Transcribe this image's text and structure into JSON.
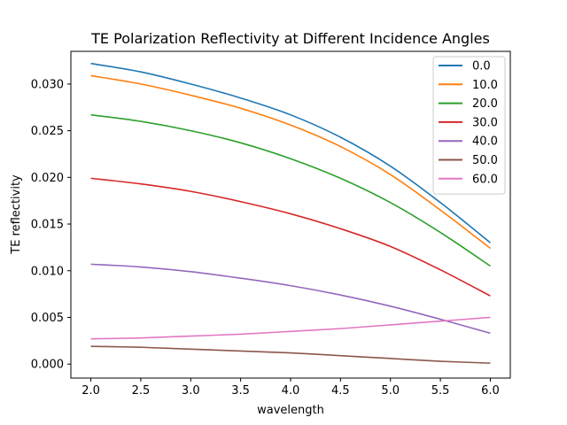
{
  "chart_data": {
    "type": "line",
    "title": "TE Polarization Reflectivity at Different Incidence Angles",
    "xlabel": "wavelength",
    "ylabel": "TE reflectivity",
    "xlim": [
      1.8,
      6.2
    ],
    "ylim": [
      -0.0015,
      0.0335
    ],
    "xticks": [
      "2.0",
      "2.5",
      "3.0",
      "3.5",
      "4.0",
      "4.5",
      "5.0",
      "5.5",
      "6.0"
    ],
    "yticks": [
      "0.000",
      "0.005",
      "0.010",
      "0.015",
      "0.020",
      "0.025",
      "0.030"
    ],
    "legend_position": "top-right",
    "grid": false,
    "x": [
      2.0,
      2.5,
      3.0,
      3.5,
      4.0,
      4.5,
      5.0,
      5.5,
      6.0
    ],
    "series": [
      {
        "name": "0.0",
        "color": "#1f77b4",
        "values": [
          0.0322,
          0.0313,
          0.03,
          0.0285,
          0.0267,
          0.0243,
          0.0212,
          0.0173,
          0.013
        ]
      },
      {
        "name": "10.0",
        "color": "#ff7f0e",
        "values": [
          0.0309,
          0.03,
          0.0288,
          0.0274,
          0.0256,
          0.0233,
          0.0203,
          0.0165,
          0.0124
        ]
      },
      {
        "name": "20.0",
        "color": "#2ca02c",
        "values": [
          0.0267,
          0.026,
          0.025,
          0.0237,
          0.022,
          0.0199,
          0.0173,
          0.0141,
          0.0105
        ]
      },
      {
        "name": "30.0",
        "color": "#d62728",
        "values": [
          0.0199,
          0.0193,
          0.0185,
          0.0174,
          0.0161,
          0.0145,
          0.0126,
          0.0101,
          0.0073
        ]
      },
      {
        "name": "40.0",
        "color": "#9467bd",
        "values": [
          0.0107,
          0.0104,
          0.0099,
          0.0092,
          0.0084,
          0.0074,
          0.0062,
          0.0048,
          0.0033
        ]
      },
      {
        "name": "50.0",
        "color": "#8c564b",
        "values": [
          0.0019,
          0.0018,
          0.0016,
          0.0014,
          0.0012,
          0.0009,
          0.0006,
          0.0003,
          0.0001
        ]
      },
      {
        "name": "60.0",
        "color": "#e377c2",
        "values": [
          0.0027,
          0.0028,
          0.003,
          0.0032,
          0.0035,
          0.0038,
          0.0042,
          0.0046,
          0.005
        ]
      }
    ]
  }
}
